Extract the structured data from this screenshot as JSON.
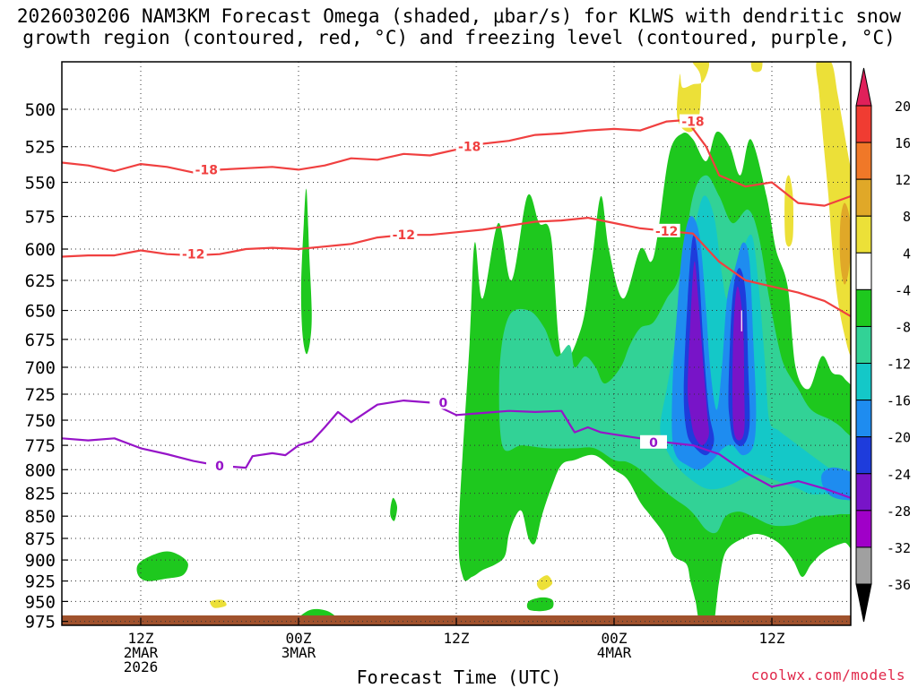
{
  "chart_data": {
    "type": "contour",
    "title_line1": "2026030206 NAM3KM Forecast Omega (shaded, μbar/s) for KLWS with dendritic snow",
    "title_line2": "growth region (contoured, red, °C) and freezing level (contoured, purple, °C)",
    "xlabel": "Forecast Time (UTC)",
    "ylabel": "",
    "credit": "coolwx.com/models",
    "y_ticks": [
      500,
      525,
      550,
      575,
      600,
      625,
      650,
      675,
      700,
      725,
      750,
      775,
      800,
      825,
      850,
      875,
      900,
      925,
      950,
      975
    ],
    "x_ticks": [
      {
        "hour": 12,
        "label": [
          "12Z",
          "2MAR",
          "2026"
        ]
      },
      {
        "hour": 24,
        "label": [
          "00Z",
          "3MAR"
        ]
      },
      {
        "hour": 36,
        "label": [
          "12Z"
        ]
      },
      {
        "hour": 48,
        "label": [
          "00Z",
          "4MAR"
        ]
      },
      {
        "hour": 60,
        "label": [
          "12Z"
        ]
      }
    ],
    "xlim": [
      6,
      66
    ],
    "ylim": [
      980,
      470
    ],
    "y_scale": "log",
    "grid": true,
    "colorbar": {
      "labels": [
        "20",
        "16",
        "12",
        "8",
        "4",
        "-4",
        "-8",
        "-12",
        "-16",
        "-20",
        "-24",
        "-28",
        "-32",
        "-36"
      ],
      "colors": [
        "#e0205a",
        "#f03c32",
        "#f07828",
        "#e0a828",
        "#ece038",
        "#ffffff",
        "#1ec81e",
        "#32d296",
        "#14c8c8",
        "#1e8cf0",
        "#1e3cdc",
        "#7814c8",
        "#a000c8",
        "#a0a0a0",
        "#000000"
      ]
    },
    "fill_colors": {
      "green": "#1ec81e",
      "teal": "#32d296",
      "cyan": "#14c8c8",
      "blue": "#1e8cf0",
      "dblue": "#1e3cdc",
      "purple": "#7814c8",
      "yellow": "#ece038",
      "orange": "#e0a828",
      "ground": "#a0522d"
    },
    "contours": [
      {
        "label": "-18",
        "color": "#f04040",
        "x": [
          6,
          8,
          10,
          12,
          14,
          16,
          18,
          20,
          22,
          24,
          26,
          28,
          30,
          32,
          34,
          36,
          38,
          40,
          42,
          44,
          46,
          48,
          50,
          52,
          53.5,
          55,
          56,
          58,
          60,
          62,
          64,
          66
        ],
        "y": [
          536,
          538,
          542,
          537,
          539,
          543,
          541,
          540,
          539,
          541,
          538,
          533,
          534,
          530,
          531,
          527,
          523,
          521,
          517,
          516,
          514,
          513,
          514,
          508,
          507,
          525,
          545,
          553,
          550,
          565,
          567,
          560
        ],
        "labels_at": [
          {
            "x": 17,
            "y": 541
          },
          {
            "x": 37,
            "y": 525
          },
          {
            "x": 54,
            "y": 508
          }
        ]
      },
      {
        "label": "-12",
        "color": "#f04040",
        "x": [
          6,
          8,
          10,
          12,
          14,
          16,
          18,
          20,
          22,
          24,
          26,
          28,
          30,
          32,
          34,
          36,
          38,
          40,
          42,
          44,
          46,
          48,
          50,
          52,
          54,
          56,
          58,
          60,
          62,
          64,
          66
        ],
        "y": [
          606,
          605,
          605,
          601,
          604,
          605,
          604,
          600,
          599,
          600,
          598,
          596,
          591,
          589,
          589,
          587,
          585,
          582,
          579,
          578,
          576,
          580,
          584,
          586,
          588,
          610,
          625,
          630,
          635,
          642,
          655
        ],
        "labels_at": [
          {
            "x": 16,
            "y": 604
          },
          {
            "x": 32,
            "y": 589
          },
          {
            "x": 52,
            "y": 586
          }
        ]
      },
      {
        "label": "0",
        "color": "#9614c8",
        "x": [
          6,
          8,
          10,
          12,
          14,
          16,
          18,
          20,
          20.5,
          22,
          23,
          24,
          25,
          26,
          27,
          28,
          30,
          32,
          34,
          36,
          38,
          40,
          42,
          44,
          45,
          46,
          47,
          48,
          50,
          52,
          54,
          56,
          58,
          60,
          62,
          64,
          66
        ],
        "y": [
          768,
          770,
          768,
          778,
          784,
          791,
          796,
          798,
          786,
          783,
          785,
          775,
          771,
          757,
          742,
          752,
          735,
          731,
          733,
          745,
          743,
          741,
          742,
          741,
          762,
          757,
          762,
          764,
          768,
          772,
          775,
          784,
          803,
          818,
          812,
          820,
          830
        ],
        "labels_at": [
          {
            "x": 18,
            "y": 796
          },
          {
            "x": 35,
            "y": 733
          },
          {
            "x": 51,
            "y": 772
          }
        ]
      }
    ]
  }
}
